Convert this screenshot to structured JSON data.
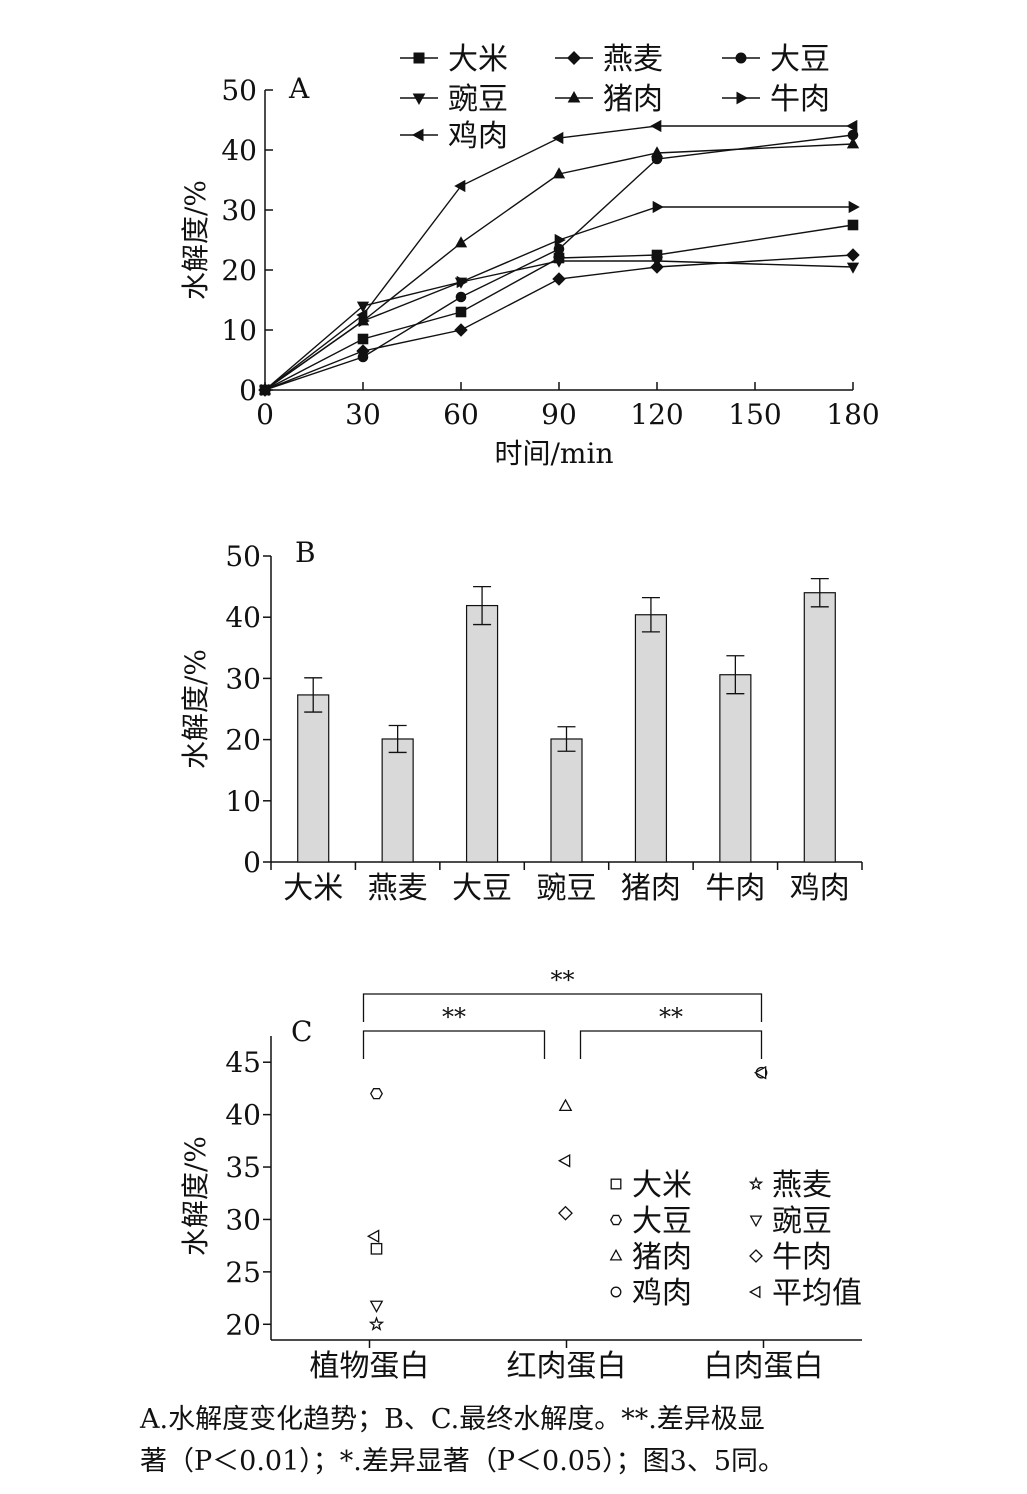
{
  "chart_data": [
    {
      "panel": "A",
      "type": "line",
      "xlabel": "时间/min",
      "ylabel": "水解度/%",
      "x": [
        0,
        30,
        60,
        90,
        120,
        180
      ],
      "xticks": [
        "0",
        "30",
        "60",
        "90",
        "120",
        "150",
        "180"
      ],
      "yticks": [
        "0",
        "10",
        "20",
        "30",
        "40",
        "50"
      ],
      "xlim": [
        0,
        180
      ],
      "ylim": [
        0,
        50
      ],
      "legend_position": "top",
      "series": [
        {
          "name": "大米",
          "marker": "square",
          "values": [
            0,
            8.5,
            13,
            22,
            22.5,
            27.5
          ]
        },
        {
          "name": "燕麦",
          "marker": "diamond",
          "values": [
            0,
            6.5,
            10,
            18.5,
            20.5,
            22.5
          ]
        },
        {
          "name": "大豆",
          "marker": "circle",
          "values": [
            0,
            5.5,
            15.5,
            23.5,
            38.5,
            42.5
          ]
        },
        {
          "name": "豌豆",
          "marker": "triangle-down",
          "values": [
            0,
            14,
            18,
            21.5,
            21.5,
            20.5
          ]
        },
        {
          "name": "猪肉",
          "marker": "triangle-up",
          "values": [
            0,
            11.5,
            24.5,
            36,
            39.5,
            41
          ]
        },
        {
          "name": "牛肉",
          "marker": "triangle-right",
          "values": [
            0,
            11.5,
            18,
            25,
            30.5,
            30.5
          ]
        },
        {
          "name": "鸡肉",
          "marker": "triangle-left",
          "values": [
            0,
            12.5,
            34,
            42,
            44,
            44
          ]
        }
      ]
    },
    {
      "panel": "B",
      "type": "bar",
      "ylabel": "水解度/%",
      "categories": [
        "大米",
        "燕麦",
        "大豆",
        "豌豆",
        "猪肉",
        "牛肉",
        "鸡肉"
      ],
      "values": [
        27.3,
        20.1,
        41.9,
        20.1,
        40.4,
        30.6,
        44.0
      ],
      "errors": [
        2.8,
        2.2,
        3.1,
        2.0,
        2.8,
        3.1,
        2.3
      ],
      "yticks": [
        "0",
        "10",
        "20",
        "30",
        "40",
        "50"
      ],
      "ylim": [
        0,
        50
      ],
      "bar_color": "#d9d9d9"
    },
    {
      "panel": "C",
      "type": "scatter",
      "ylabel": "水解度/%",
      "categories": [
        "植物蛋白",
        "红肉蛋白",
        "白肉蛋白"
      ],
      "yticks": [
        "20",
        "25",
        "30",
        "35",
        "40",
        "45"
      ],
      "ylim": [
        18.5,
        47.5
      ],
      "legend_position": "right",
      "points": [
        {
          "series": "大米",
          "marker": "square",
          "group": "植物蛋白",
          "y": 27.2
        },
        {
          "series": "燕麦",
          "marker": "star",
          "group": "植物蛋白",
          "y": 20.0
        },
        {
          "series": "大豆",
          "marker": "hexagon",
          "group": "植物蛋白",
          "y": 42.0
        },
        {
          "series": "豌豆",
          "marker": "triangle-down",
          "group": "植物蛋白",
          "y": 21.8
        },
        {
          "series": "平均值",
          "marker": "triangle-left",
          "group": "植物蛋白",
          "y": 28.4
        },
        {
          "series": "猪肉",
          "marker": "triangle-up",
          "group": "红肉蛋白",
          "y": 40.8
        },
        {
          "series": "牛肉",
          "marker": "diamond",
          "group": "红肉蛋白",
          "y": 30.6
        },
        {
          "series": "平均值",
          "marker": "triangle-left",
          "group": "红肉蛋白",
          "y": 35.6
        },
        {
          "series": "鸡肉",
          "marker": "circle",
          "group": "白肉蛋白",
          "y": 44.0
        },
        {
          "series": "平均值",
          "marker": "triangle-left",
          "group": "白肉蛋白",
          "y": 44.0
        }
      ],
      "legend": [
        {
          "name": "大米",
          "marker": "square"
        },
        {
          "name": "燕麦",
          "marker": "star"
        },
        {
          "name": "大豆",
          "marker": "hexagon"
        },
        {
          "name": "豌豆",
          "marker": "triangle-down"
        },
        {
          "name": "猪肉",
          "marker": "triangle-up"
        },
        {
          "name": "牛肉",
          "marker": "diamond"
        },
        {
          "name": "鸡肉",
          "marker": "circle"
        },
        {
          "name": "平均值",
          "marker": "triangle-left"
        }
      ],
      "significance": [
        {
          "from": "植物蛋白",
          "to": "白肉蛋白",
          "label": "**"
        },
        {
          "from": "植物蛋白",
          "to": "红肉蛋白",
          "label": "**"
        },
        {
          "from": "红肉蛋白",
          "to": "白肉蛋白",
          "label": "**"
        }
      ]
    }
  ],
  "caption": {
    "line1": "A.水解度变化趋势；B、C.最终水解度。**.差异极显",
    "line2": "著（P＜0.01）；*.差异显著（P＜0.05）；图3、5同。"
  }
}
